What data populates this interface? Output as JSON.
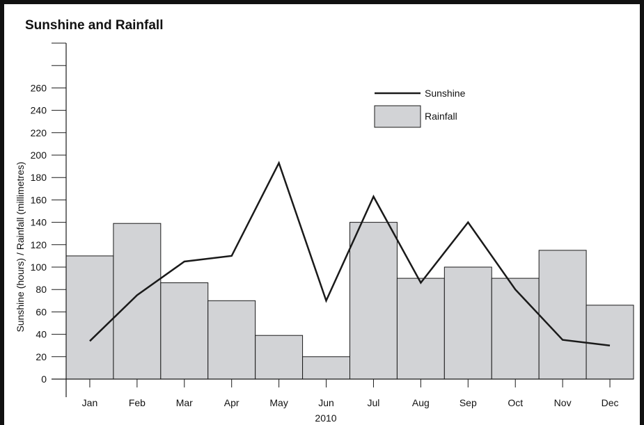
{
  "chart_data": {
    "type": "bar+line",
    "title": "Sunshine and Rainfall",
    "ylabel": "Sunshine (hours) / Rainfall (millimetres)",
    "xlabel": "2010",
    "categories": [
      "Jan",
      "Feb",
      "Mar",
      "Apr",
      "May",
      "Jun",
      "Jul",
      "Aug",
      "Sep",
      "Oct",
      "Nov",
      "Dec"
    ],
    "ylim": [
      0,
      300
    ],
    "yticks": [
      0,
      20,
      40,
      60,
      80,
      100,
      120,
      140,
      160,
      180,
      200,
      220,
      240,
      260,
      280,
      300
    ],
    "ytick_labels": [
      "0",
      "20",
      "40",
      "60",
      "80",
      "100",
      "120",
      "140",
      "160",
      "180",
      "200",
      "220",
      "240",
      "260",
      "",
      ""
    ],
    "series": [
      {
        "name": "Rainfall",
        "kind": "bar",
        "values": [
          110,
          139,
          86,
          70,
          39,
          20,
          140,
          90,
          100,
          90,
          115,
          66
        ],
        "color": "#d2d3d6"
      },
      {
        "name": "Sunshine",
        "kind": "line",
        "values": [
          34,
          75,
          105,
          110,
          193,
          70,
          163,
          86,
          140,
          80,
          35,
          30
        ],
        "color": "#1a1a1a"
      }
    ],
    "legend": {
      "position": "top-right"
    },
    "grid": false
  }
}
